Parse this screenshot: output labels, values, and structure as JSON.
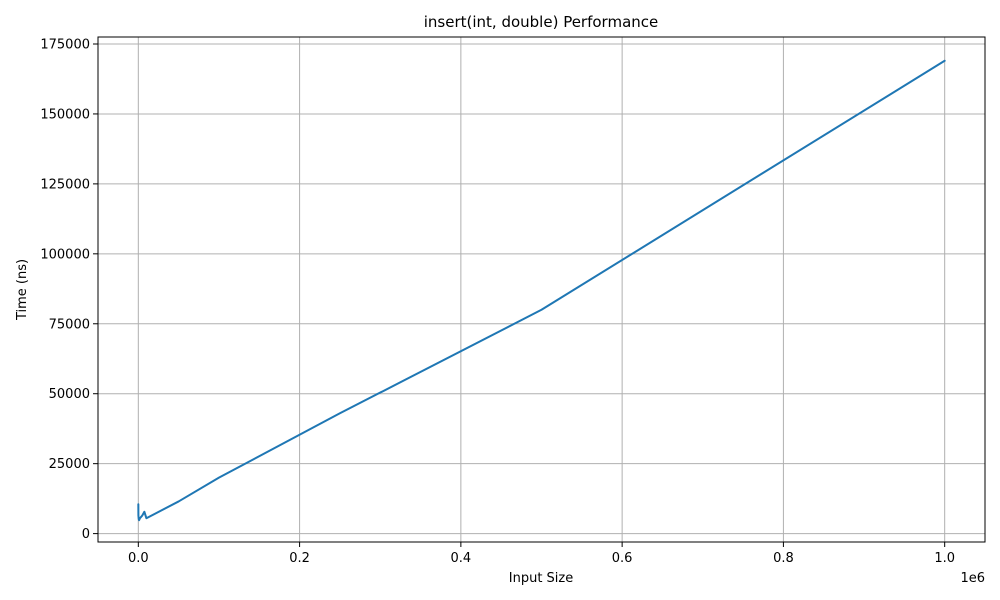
{
  "chart_data": {
    "type": "line",
    "title": "insert(int, double) Performance",
    "xlabel": "Input Size",
    "ylabel": "Time (ns)",
    "x_offset_label": "1e6",
    "xlim": [
      -50000,
      1050000
    ],
    "ylim": [
      -3000,
      177500
    ],
    "x_ticks": [
      0,
      200000,
      400000,
      600000,
      800000,
      1000000
    ],
    "x_tick_labels": [
      "0.0",
      "0.2",
      "0.4",
      "0.6",
      "0.8",
      "1.0"
    ],
    "y_ticks": [
      0,
      25000,
      50000,
      75000,
      100000,
      125000,
      150000,
      175000
    ],
    "y_tick_labels": [
      "0",
      "25000",
      "50000",
      "75000",
      "100000",
      "125000",
      "150000",
      "175000"
    ],
    "grid": true,
    "series": [
      {
        "color": "#1f77b4",
        "x": [
          10,
          100,
          500,
          1000,
          2000,
          5000,
          7500,
          10000,
          50000,
          100000,
          250000,
          500000,
          1000000
        ],
        "y": [
          10500,
          6500,
          5200,
          4800,
          5500,
          6500,
          7800,
          5500,
          11500,
          20000,
          43000,
          80000,
          169000
        ]
      }
    ]
  }
}
